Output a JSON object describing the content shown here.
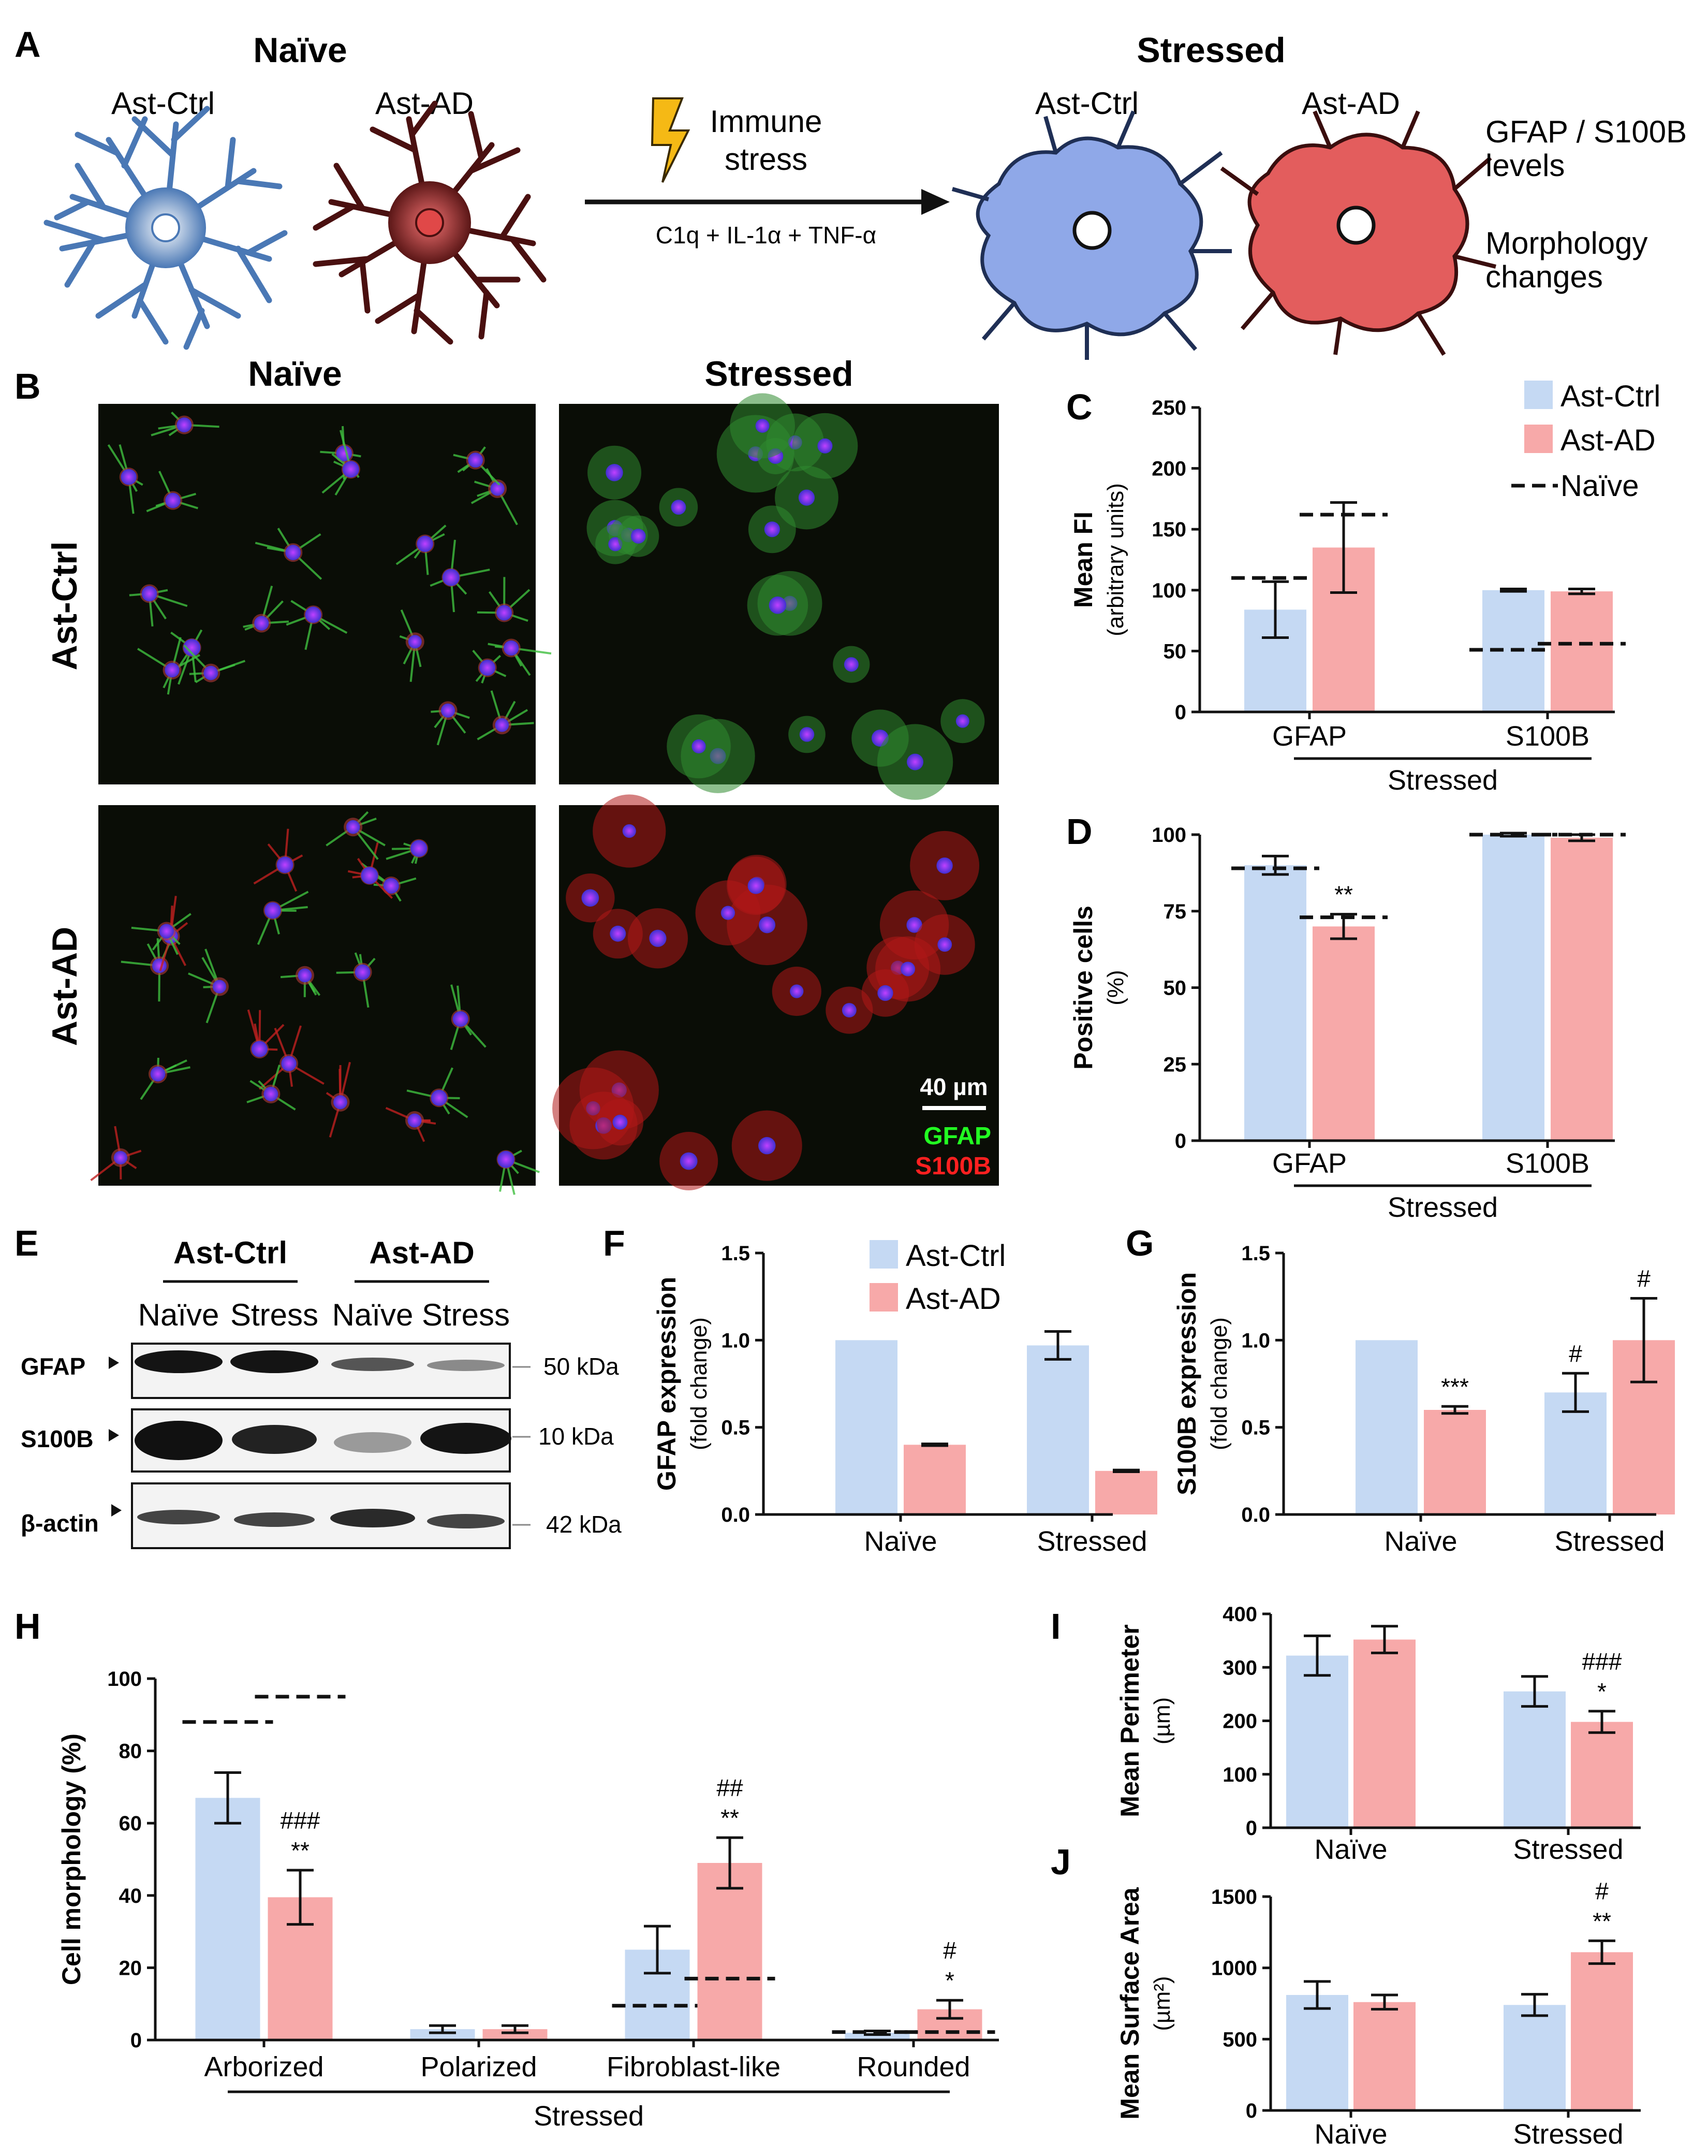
{
  "panel_a": {
    "letter": "A",
    "naive_header": "Naïve",
    "stressed_header": "Stressed",
    "ast_ctrl": "Ast-Ctrl",
    "ast_ad": "Ast-AD",
    "immune_stress": "Immune",
    "immune_stress_2": "stress",
    "treatment": "C1q  +  IL-1α  + TNF-α",
    "readout_1": "GFAP / S100B",
    "readout_1b": "levels",
    "readout_2": "Morphology",
    "readout_2b": "changes"
  },
  "panel_b": {
    "letter": "B",
    "col_naive": "Naïve",
    "col_stressed": "Stressed",
    "row_ctrl": "Ast-Ctrl",
    "row_ad": "Ast-AD",
    "scale_bar": "40 µm",
    "stain_1": "GFAP",
    "stain_2": "S100B"
  },
  "panel_e": {
    "letter": "E",
    "group_1": "Ast-Ctrl",
    "group_2": "Ast-AD",
    "lanes": [
      "Naïve",
      "Stress",
      "Naïve",
      "Stress"
    ],
    "rows": [
      {
        "label": "GFAP",
        "size": "50 kDa"
      },
      {
        "label": "S100B",
        "size": "10 kDa"
      },
      {
        "label": "β-actin",
        "size": "42 kDa"
      }
    ]
  },
  "colors": {
    "ctrl": "#c5d9f3",
    "ad": "#f7a9a9"
  },
  "legend": {
    "ctrl": "Ast-Ctrl",
    "ad": "Ast-AD",
    "naive": "Naïve"
  },
  "chart_data": [
    {
      "id": "C",
      "type": "bar",
      "ylabel": "Mean FI",
      "ylabel_sub": "(arbitrary units)",
      "categories": [
        "GFAP",
        "S100B"
      ],
      "group_label": "Stressed",
      "ylim": [
        0,
        250
      ],
      "yticks": [
        0,
        50,
        100,
        150,
        200,
        250
      ],
      "series": [
        {
          "name": "Ast-Ctrl",
          "values": [
            84,
            100
          ],
          "err": [
            23,
            1
          ]
        },
        {
          "name": "Ast-AD",
          "values": [
            135,
            99
          ],
          "err": [
            37,
            2
          ]
        }
      ],
      "naive_lines": [
        [
          110,
          162
        ],
        [
          51,
          56
        ]
      ],
      "significance": [
        [
          "",
          ""
        ],
        [
          "",
          ""
        ]
      ]
    },
    {
      "id": "D",
      "type": "bar",
      "ylabel": "Positive cells",
      "ylabel_sub": "(%)",
      "categories": [
        "GFAP",
        "S100B"
      ],
      "group_label": "Stressed",
      "ylim": [
        0,
        100
      ],
      "yticks": [
        0,
        25,
        50,
        75,
        100
      ],
      "series": [
        {
          "name": "Ast-Ctrl",
          "values": [
            90,
            100
          ],
          "err": [
            3,
            0.5
          ]
        },
        {
          "name": "Ast-AD",
          "values": [
            70,
            99
          ],
          "err": [
            4,
            1
          ]
        }
      ],
      "naive_lines": [
        [
          89,
          73
        ],
        [
          100,
          100
        ]
      ],
      "significance": [
        [
          "",
          "**"
        ],
        [
          "",
          ""
        ]
      ]
    },
    {
      "id": "F",
      "type": "bar",
      "ylabel": "GFAP expression",
      "ylabel_sub": "(fold change)",
      "categories": [
        "Naïve",
        "Stressed"
      ],
      "group_label": "",
      "ylim": [
        0,
        1.5
      ],
      "yticks": [
        0.0,
        0.5,
        1.0,
        1.5
      ],
      "decimals": 1,
      "series": [
        {
          "name": "Ast-Ctrl",
          "values": [
            1.0,
            0.97
          ],
          "err": [
            0,
            0.08
          ]
        },
        {
          "name": "Ast-AD",
          "values": [
            0.4,
            0.25
          ],
          "err": [
            0.005,
            0.005
          ]
        }
      ],
      "naive_lines": null,
      "significance": [
        [
          "",
          ""
        ],
        [
          "",
          ""
        ]
      ]
    },
    {
      "id": "G",
      "type": "bar",
      "ylabel": "S100B expression",
      "ylabel_sub": "(fold change)",
      "categories": [
        "Naïve",
        "Stressed"
      ],
      "group_label": "",
      "ylim": [
        0,
        1.5
      ],
      "yticks": [
        0.0,
        0.5,
        1.0,
        1.5
      ],
      "decimals": 1,
      "series": [
        {
          "name": "Ast-Ctrl",
          "values": [
            1.0,
            0.7
          ],
          "err": [
            0,
            0.11
          ]
        },
        {
          "name": "Ast-AD",
          "values": [
            0.6,
            1.0
          ],
          "err": [
            0.02,
            0.24
          ]
        }
      ],
      "naive_lines": null,
      "significance": [
        [
          "",
          "***"
        ],
        [
          "#",
          "#"
        ]
      ]
    },
    {
      "id": "H",
      "type": "bar",
      "ylabel": "Cell morphology (%)",
      "ylabel_sub": "",
      "categories": [
        "Arborized",
        "Polarized",
        "Fibroblast-like",
        "Rounded"
      ],
      "group_label": "Stressed",
      "ylim": [
        0,
        100
      ],
      "yticks": [
        0,
        20,
        40,
        60,
        80,
        100
      ],
      "series": [
        {
          "name": "Ast-Ctrl",
          "values": [
            67,
            3,
            25,
            2
          ],
          "err": [
            7,
            1,
            6.5,
            0.5
          ]
        },
        {
          "name": "Ast-AD",
          "values": [
            39.5,
            3,
            49,
            8.5
          ],
          "err": [
            7.5,
            1,
            7,
            2.5
          ]
        }
      ],
      "naive_lines": [
        [
          88,
          95
        ],
        [
          null,
          null
        ],
        [
          9.5,
          17
        ],
        [
          2.2,
          2.2
        ]
      ],
      "significance": [
        [
          "",
          "###\n**"
        ],
        [
          "",
          ""
        ],
        [
          "",
          "##\n**"
        ],
        [
          "",
          "#\n*"
        ]
      ]
    },
    {
      "id": "I",
      "type": "bar",
      "ylabel": "Mean Perimeter",
      "ylabel_sub": "(µm)",
      "categories": [
        "Naïve",
        "Stressed"
      ],
      "group_label": "",
      "ylim": [
        0,
        400
      ],
      "yticks": [
        0,
        100,
        200,
        300,
        400
      ],
      "series": [
        {
          "name": "Ast-Ctrl",
          "values": [
            322,
            255
          ],
          "err": [
            37,
            28
          ]
        },
        {
          "name": "Ast-AD",
          "values": [
            352,
            198
          ],
          "err": [
            25,
            20
          ]
        }
      ],
      "naive_lines": null,
      "significance": [
        [
          "",
          ""
        ],
        [
          "",
          "###\n*"
        ]
      ]
    },
    {
      "id": "J",
      "type": "bar",
      "ylabel": "Mean Surface Area",
      "ylabel_sub": "(µm²)",
      "categories": [
        "Naïve",
        "Stressed"
      ],
      "group_label": "",
      "ylim": [
        0,
        1500
      ],
      "yticks": [
        0,
        500,
        1000,
        1500
      ],
      "series": [
        {
          "name": "Ast-Ctrl",
          "values": [
            810,
            740
          ],
          "err": [
            95,
            75
          ]
        },
        {
          "name": "Ast-AD",
          "values": [
            760,
            1110
          ],
          "err": [
            50,
            80
          ]
        }
      ],
      "naive_lines": null,
      "significance": [
        [
          "",
          ""
        ],
        [
          "",
          "#\n**"
        ]
      ]
    }
  ]
}
